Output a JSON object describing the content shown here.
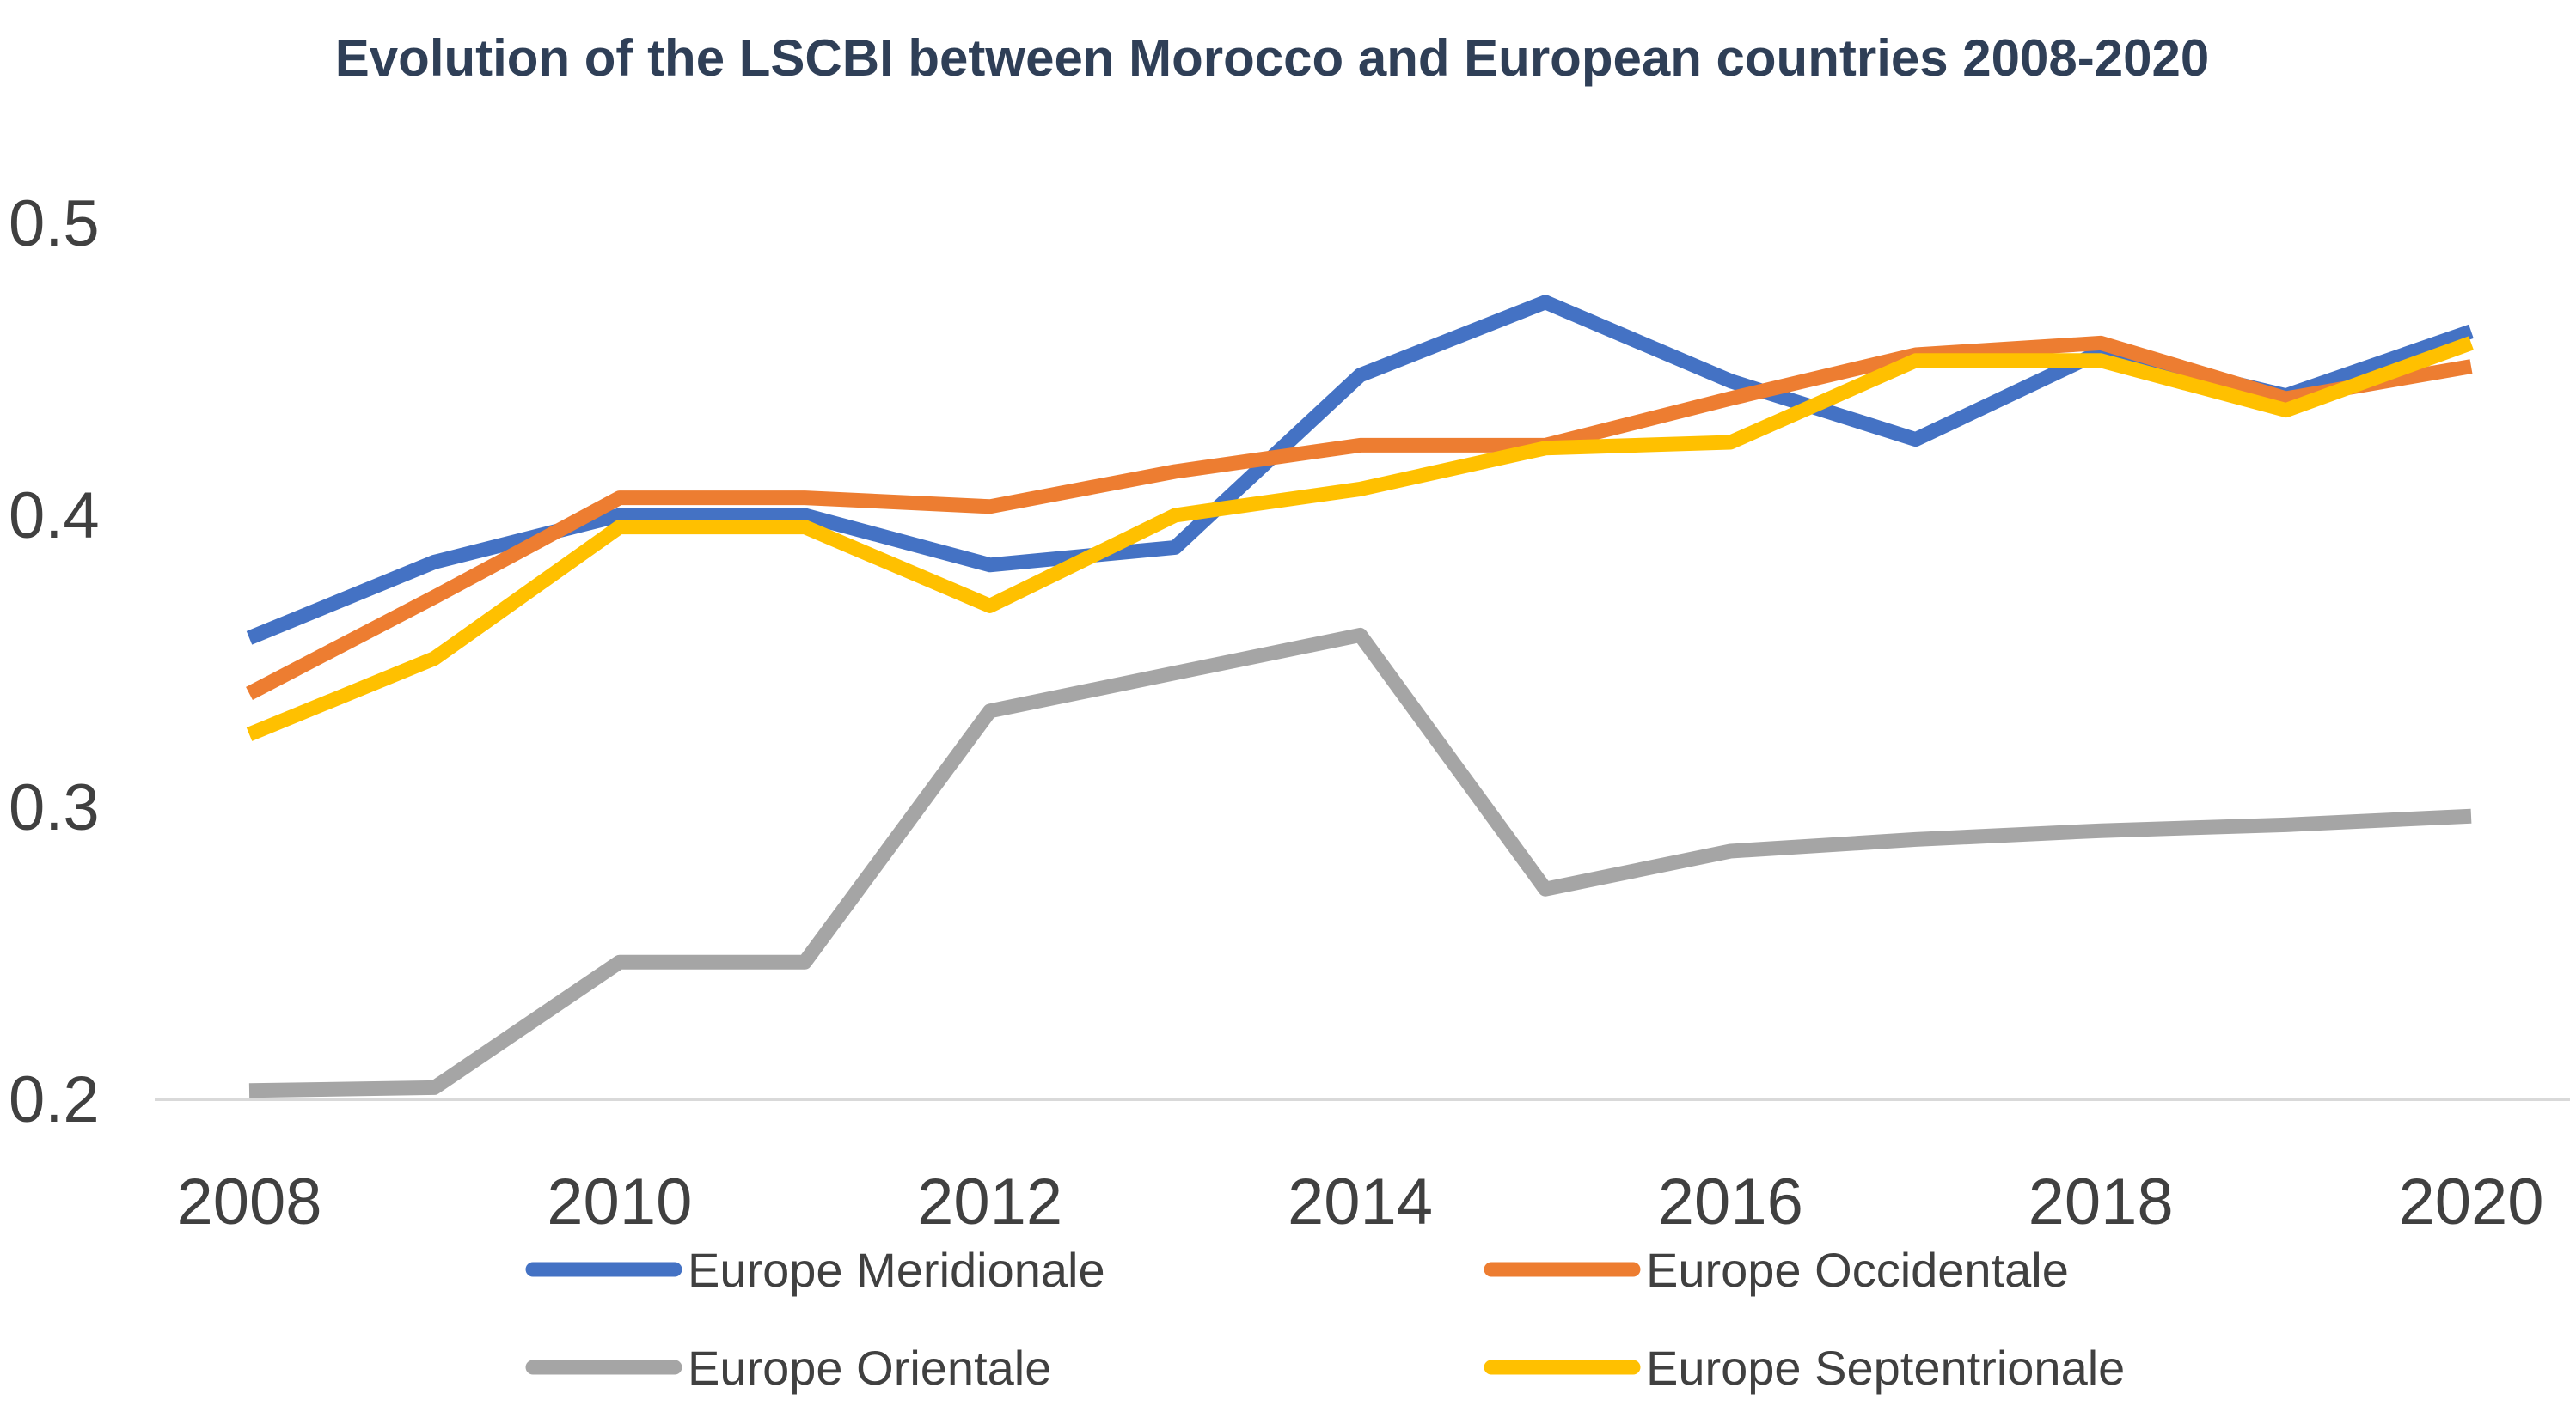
{
  "chart_data": {
    "type": "line",
    "title": "Evolution of the LSCBI between Morocco and European countries 2008-2020",
    "xlabel": "",
    "ylabel": "",
    "x": [
      2008,
      2009,
      2010,
      2011,
      2012,
      2013,
      2014,
      2015,
      2016,
      2017,
      2018,
      2019,
      2020
    ],
    "x_tick_labels": [
      "2008",
      "2010",
      "2012",
      "2014",
      "2016",
      "2018",
      "2020"
    ],
    "x_tick_values": [
      2008,
      2010,
      2012,
      2014,
      2016,
      2018,
      2020
    ],
    "y_tick_labels": [
      "0.2",
      "0.3",
      "0.4",
      "0.5"
    ],
    "y_tick_values": [
      0.2,
      0.3,
      0.4,
      0.5
    ],
    "ylim": [
      0.2,
      0.5
    ],
    "grid": false,
    "legend_position": "bottom",
    "series": [
      {
        "name": "Europe Meridionale",
        "color": "#4472c4",
        "values": [
          0.358,
          0.384,
          0.4,
          0.4,
          0.383,
          0.389,
          0.448,
          0.473,
          0.446,
          0.426,
          0.456,
          0.441,
          0.463
        ]
      },
      {
        "name": "Europe Orientale",
        "color": "#a5a5a5",
        "values": [
          0.203,
          0.204,
          0.247,
          0.247,
          0.333,
          0.346,
          0.359,
          0.272,
          0.285,
          0.289,
          0.292,
          0.294,
          0.297
        ]
      },
      {
        "name": "Europe Occidentale",
        "color": "#ed7d31",
        "values": [
          0.339,
          0.372,
          0.406,
          0.406,
          0.403,
          0.415,
          0.424,
          0.424,
          0.44,
          0.455,
          0.459,
          0.44,
          0.451
        ]
      },
      {
        "name": "Europe Septentrionale",
        "color": "#ffc000",
        "values": [
          0.325,
          0.351,
          0.396,
          0.396,
          0.369,
          0.4,
          0.409,
          0.423,
          0.425,
          0.453,
          0.453,
          0.436,
          0.459
        ]
      }
    ]
  }
}
